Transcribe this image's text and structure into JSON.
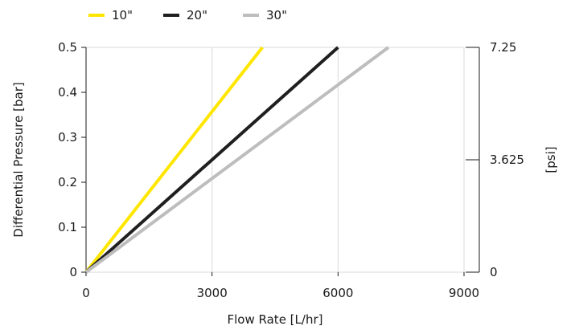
{
  "chart_data": {
    "type": "line",
    "xlabel": "Flow Rate [L/hr]",
    "ylabel": "Differential Pressure [bar]",
    "y2label": "[psi]",
    "xlim": [
      0,
      9000
    ],
    "ylim": [
      0,
      0.5
    ],
    "y2lim": [
      0,
      7.25
    ],
    "xticks": [
      "0",
      "3000",
      "6000",
      "9000"
    ],
    "yticks": [
      "0",
      "0.1",
      "0.2",
      "0.3",
      "0.4",
      "0.5"
    ],
    "y2ticks": [
      "0",
      "3.625",
      "7.25"
    ],
    "grid": "vertical",
    "legend": "top",
    "series": [
      {
        "name": "10\"",
        "color": "#ffe600",
        "x": [
          0,
          4200
        ],
        "y": [
          0,
          0.5
        ]
      },
      {
        "name": "20\"",
        "color": "#1f1f1f",
        "x": [
          0,
          6000
        ],
        "y": [
          0,
          0.5
        ]
      },
      {
        "name": "30\"",
        "color": "#bdbdbd",
        "x": [
          0,
          7200
        ],
        "y": [
          0,
          0.5
        ]
      }
    ]
  }
}
